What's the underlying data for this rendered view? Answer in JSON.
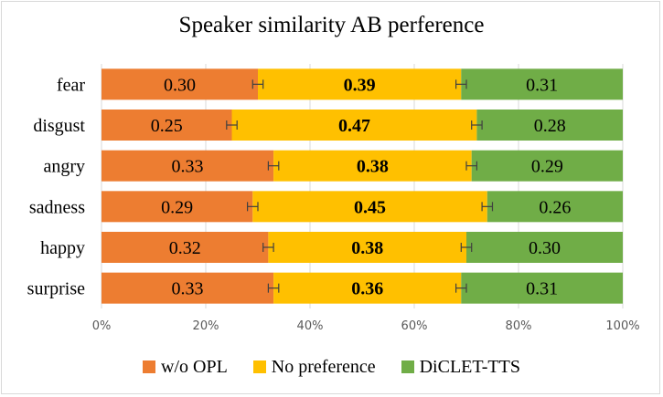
{
  "chart_data": {
    "type": "bar",
    "orientation": "horizontal",
    "stacked": true,
    "title": "Speaker similarity AB perference",
    "categories": [
      "fear",
      "disgust",
      "angry",
      "sadness",
      "happy",
      "surprise"
    ],
    "series": [
      {
        "name": "w/o OPL",
        "color": "#ED7D31",
        "values": [
          0.3,
          0.25,
          0.33,
          0.29,
          0.32,
          0.33
        ],
        "labels": [
          "0.30",
          "0.25",
          "0.33",
          "0.29",
          "0.32",
          "0.33"
        ]
      },
      {
        "name": "No preference",
        "color": "#FFC000",
        "values": [
          0.39,
          0.47,
          0.38,
          0.45,
          0.38,
          0.36
        ],
        "labels": [
          "0.39",
          "0.47",
          "0.38",
          "0.45",
          "0.38",
          "0.36"
        ]
      },
      {
        "name": "DiCLET-TTS",
        "color": "#70AD47",
        "values": [
          0.31,
          0.28,
          0.29,
          0.26,
          0.3,
          0.31
        ],
        "labels": [
          "0.31",
          "0.28",
          "0.29",
          "0.26",
          "0.30",
          "0.31"
        ]
      }
    ],
    "error_bars": {
      "error": 0.01
    },
    "x_ticks": [
      "0%",
      "20%",
      "40%",
      "60%",
      "80%",
      "100%"
    ],
    "xlim": [
      0,
      1
    ],
    "grid": true,
    "legend_position": "bottom"
  }
}
